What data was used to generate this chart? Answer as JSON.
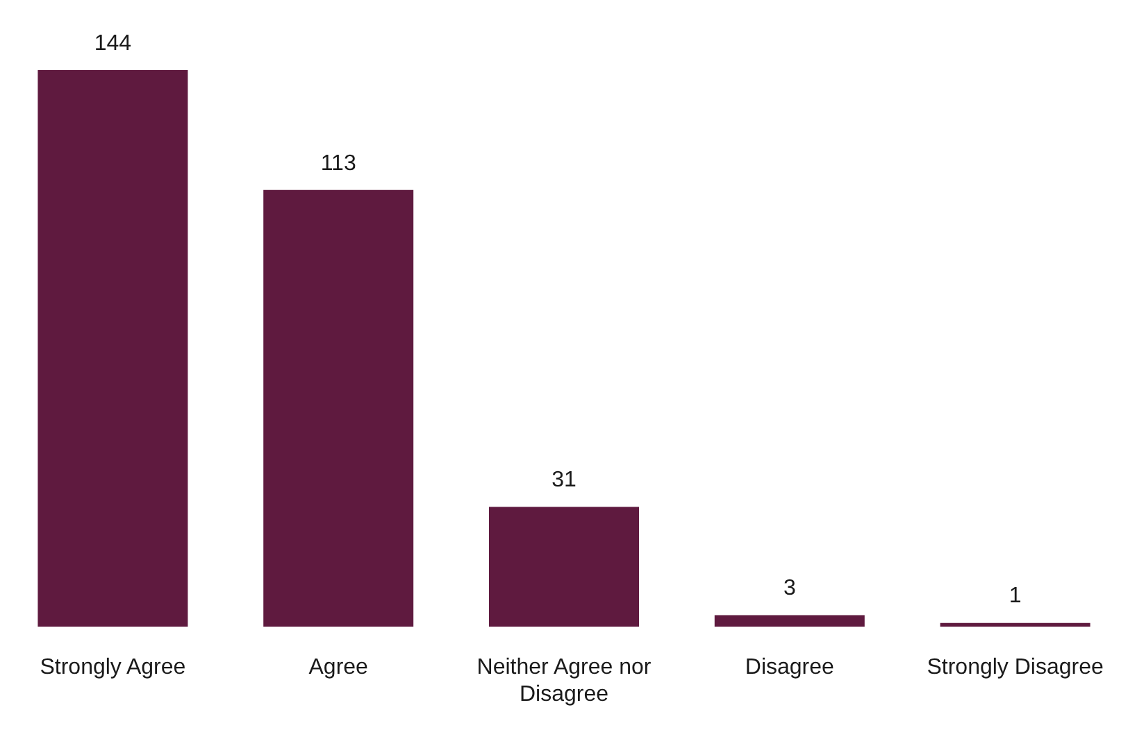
{
  "chart_data": {
    "type": "bar",
    "categories": [
      "Strongly Agree",
      "Agree",
      "Neither Agree nor Disagree",
      "Disagree",
      "Strongly Disagree"
    ],
    "values": [
      144,
      113,
      31,
      3,
      1
    ],
    "color": "#5f1a3f",
    "data_labels": true
  }
}
